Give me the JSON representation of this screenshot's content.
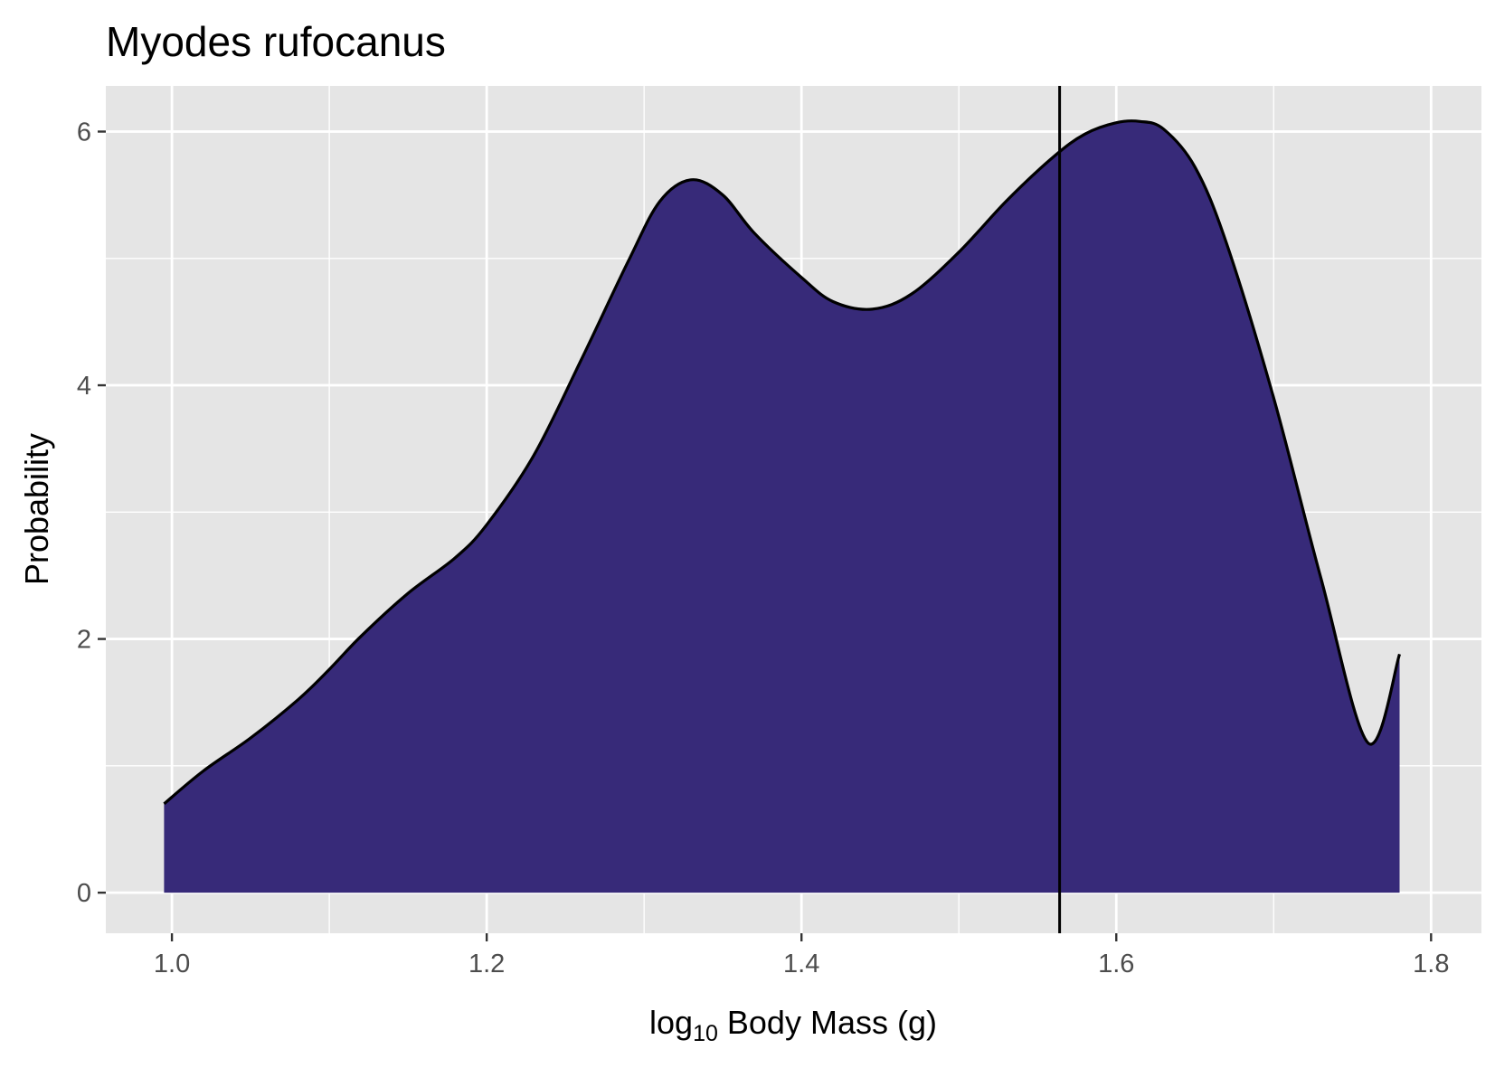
{
  "chart_data": {
    "type": "area",
    "title": "Myodes rufocanus",
    "xlabel": {
      "prefix": "log",
      "subscript": "10",
      "rest": " Body Mass (g)"
    },
    "ylabel": "Probability",
    "xlim": [
      0.958,
      1.832
    ],
    "ylim": [
      -0.32,
      6.36
    ],
    "x_ticks": [
      {
        "value": 1.0,
        "label": "1.0"
      },
      {
        "value": 1.2,
        "label": "1.2"
      },
      {
        "value": 1.4,
        "label": "1.4"
      },
      {
        "value": 1.6,
        "label": "1.6"
      },
      {
        "value": 1.8,
        "label": "1.8"
      }
    ],
    "y_ticks": [
      {
        "value": 0,
        "label": "0"
      },
      {
        "value": 2,
        "label": "2"
      },
      {
        "value": 4,
        "label": "4"
      },
      {
        "value": 6,
        "label": "6"
      }
    ],
    "grid": true,
    "colors": {
      "panel_background": "#e5e5e5",
      "grid": "#ffffff",
      "fill": "#372a79",
      "outline": "#000000"
    },
    "reference_line": {
      "orientation": "vertical",
      "x": 1.564
    },
    "series": [
      {
        "x": [
          0.995,
          1.02,
          1.05,
          1.08,
          1.1,
          1.12,
          1.15,
          1.18,
          1.2,
          1.23,
          1.26,
          1.29,
          1.31,
          1.33,
          1.35,
          1.37,
          1.4,
          1.42,
          1.445,
          1.47,
          1.5,
          1.53,
          1.56,
          1.58,
          1.6,
          1.615,
          1.63,
          1.65,
          1.67,
          1.7,
          1.73,
          1.76,
          1.78
        ],
        "y": [
          0.7,
          0.96,
          1.22,
          1.52,
          1.76,
          2.02,
          2.36,
          2.64,
          2.9,
          3.45,
          4.2,
          4.98,
          5.45,
          5.62,
          5.5,
          5.2,
          4.85,
          4.66,
          4.6,
          4.72,
          5.05,
          5.45,
          5.8,
          5.98,
          6.07,
          6.08,
          6.02,
          5.72,
          5.12,
          3.9,
          2.48,
          1.18,
          1.88
        ]
      }
    ]
  }
}
